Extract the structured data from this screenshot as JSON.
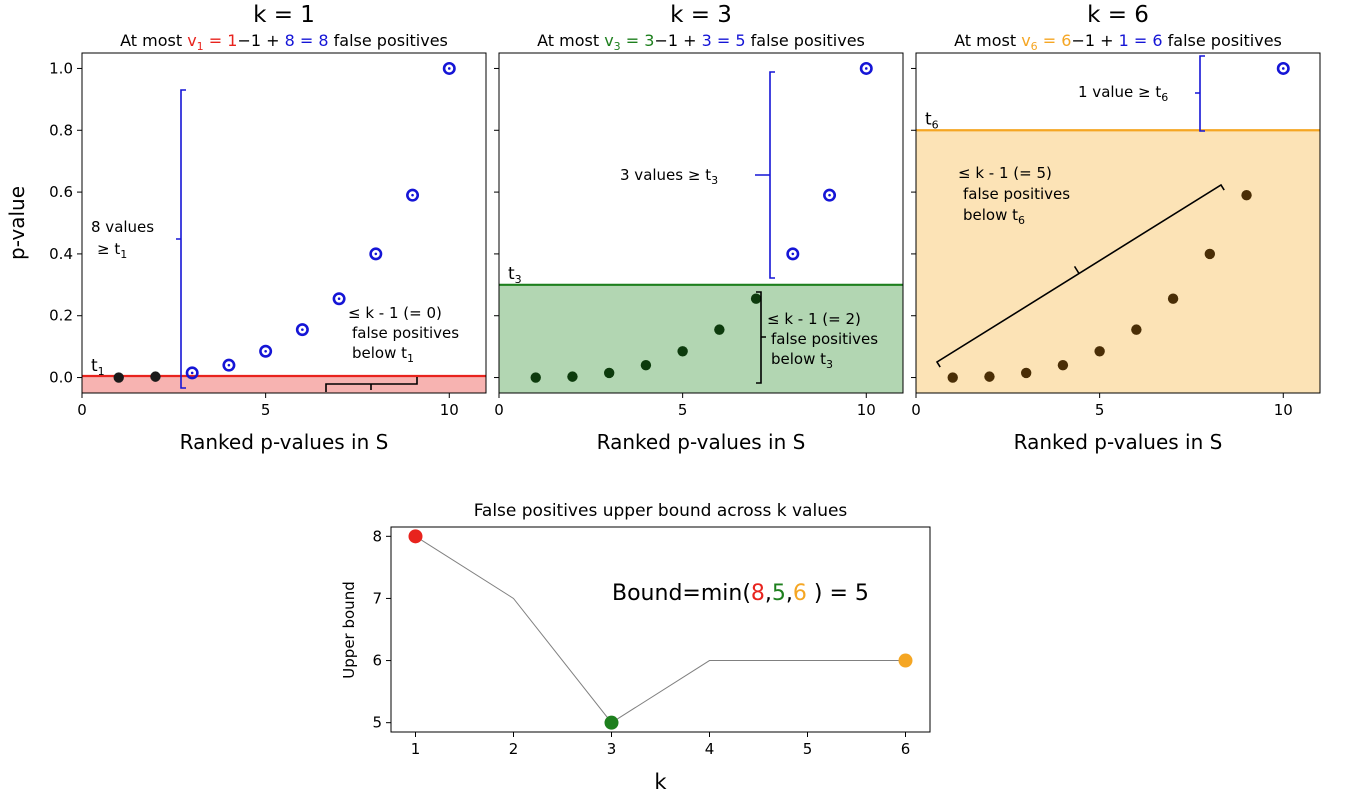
{
  "colors": {
    "red": "#e8231d",
    "green": "#1d7f1d",
    "orange": "#f5a623",
    "blue": "#1515d6",
    "red_fill": "#f7b3b1",
    "green_fill": "#b2d6b2",
    "orange_fill": "#fce3b6",
    "dark_point": "#1a1a1a",
    "green_point": "#0d3b0d",
    "orange_point": "#4a2e06"
  },
  "panels": [
    {
      "title": "k = 1",
      "title_color": "red",
      "subtitle": {
        "prefix": "At most",
        "v": "v",
        "v_sub": "1",
        "eq_k": "= 1",
        "minus": "−1 +",
        "count": "8",
        "eq_total": "= 8",
        "suffix": "false positives"
      },
      "threshold_label": "t",
      "threshold_sub": "1",
      "above_label_line1": "8 values",
      "above_label_line2": "≥ t",
      "above_label_sub": "1",
      "below_label_line1": "≤ k - 1 (= 0)",
      "below_label_line2": "false positives",
      "below_label_line3": "below t",
      "below_label_sub": "1"
    },
    {
      "title": "k = 3",
      "title_color": "green",
      "subtitle": {
        "prefix": "At most",
        "v": "v",
        "v_sub": "3",
        "eq_k": "= 3",
        "minus": "−1 +",
        "count": "3",
        "eq_total": "= 5",
        "suffix": "false positives"
      },
      "threshold_label": "t",
      "threshold_sub": "3",
      "above_label_line1": "3 values ≥ t",
      "above_label_sub": "3",
      "below_label_line1": "≤ k - 1 (= 2)",
      "below_label_line2": "false positives",
      "below_label_line3": "below t",
      "below_label_sub": "3"
    },
    {
      "title": "k = 6",
      "title_color": "orange",
      "subtitle": {
        "prefix": "At most",
        "v": "v",
        "v_sub": "6",
        "eq_k": "= 6",
        "minus": "−1 +",
        "count": "1",
        "eq_total": "= 6",
        "suffix": "false positives"
      },
      "threshold_label": "t",
      "threshold_sub": "6",
      "above_label_line1": "1 value ≥ t",
      "above_label_sub": "6",
      "below_label_line1": "≤ k - 1 (= 5)",
      "below_label_line2": "false positives",
      "below_label_line3": "below t",
      "below_label_sub": "6"
    }
  ],
  "shared_axes": {
    "ylabel": "p-value",
    "xlabel": "Ranked p-values in S",
    "x_ticks": [
      "0",
      "5",
      "10"
    ],
    "y_ticks": [
      "0.0",
      "0.2",
      "0.4",
      "0.6",
      "0.8",
      "1.0"
    ]
  },
  "bottom": {
    "title": "False positives upper bound across k values",
    "xlabel": "k",
    "ylabel": "Upper bound",
    "x_ticks": [
      "1",
      "2",
      "3",
      "4",
      "5",
      "6"
    ],
    "y_ticks": [
      "5",
      "6",
      "7",
      "8"
    ],
    "bound_text": {
      "prefix": "Bound=min(",
      "a": "8",
      "comma1": ",",
      "b": "5",
      "comma2": ",",
      "c": "6",
      "suffix": " ) = 5"
    }
  },
  "chart_data": [
    {
      "type": "scatter",
      "title": "k = 1",
      "xlabel": "Ranked p-values in S",
      "ylabel": "p-value",
      "xlim": [
        0,
        11
      ],
      "ylim": [
        -0.05,
        1.05
      ],
      "x": [
        1,
        2,
        3,
        4,
        5,
        6,
        7,
        8,
        9,
        10
      ],
      "y": [
        0.0,
        0.003,
        0.015,
        0.04,
        0.085,
        0.155,
        0.255,
        0.4,
        0.59,
        1.0
      ],
      "threshold": 0.005,
      "below_count": 2,
      "above_count": 8,
      "shaded_region": "below threshold"
    },
    {
      "type": "scatter",
      "title": "k = 3",
      "xlabel": "Ranked p-values in S",
      "xlim": [
        0,
        11
      ],
      "ylim": [
        -0.05,
        1.05
      ],
      "x": [
        1,
        2,
        3,
        4,
        5,
        6,
        7,
        8,
        9,
        10
      ],
      "y": [
        0.0,
        0.003,
        0.015,
        0.04,
        0.085,
        0.155,
        0.255,
        0.4,
        0.59,
        1.0
      ],
      "threshold": 0.3,
      "below_count": 7,
      "above_count": 3,
      "shaded_region": "below threshold"
    },
    {
      "type": "scatter",
      "title": "k = 6",
      "xlabel": "Ranked p-values in S",
      "xlim": [
        0,
        11
      ],
      "ylim": [
        -0.05,
        1.05
      ],
      "x": [
        1,
        2,
        3,
        4,
        5,
        6,
        7,
        8,
        9,
        10
      ],
      "y": [
        0.0,
        0.003,
        0.015,
        0.04,
        0.085,
        0.155,
        0.255,
        0.4,
        0.59,
        1.0
      ],
      "threshold": 0.8,
      "below_count": 9,
      "above_count": 1,
      "shaded_region": "below threshold"
    },
    {
      "type": "line",
      "title": "False positives upper bound across k values",
      "xlabel": "k",
      "ylabel": "Upper bound",
      "xlim": [
        0.75,
        6.25
      ],
      "ylim": [
        4.85,
        8.15
      ],
      "x": [
        1,
        2,
        3,
        4,
        5,
        6
      ],
      "y": [
        8,
        7,
        5,
        6,
        6,
        6
      ],
      "highlighted": [
        {
          "x": 1,
          "y": 8,
          "color": "red"
        },
        {
          "x": 3,
          "y": 5,
          "color": "green"
        },
        {
          "x": 6,
          "y": 6,
          "color": "orange"
        }
      ]
    }
  ]
}
